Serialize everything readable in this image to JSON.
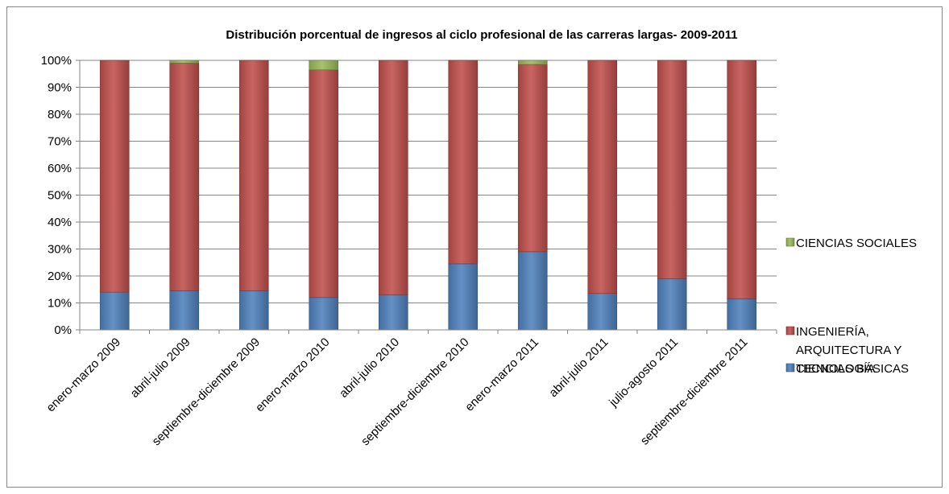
{
  "chart_data": {
    "type": "bar",
    "stacked": true,
    "percent_stacked": true,
    "title": "Distribución  porcentual de ingresos al ciclo profesional de las carreras largas- 2009-2011",
    "categories": [
      "enero-marzo 2009",
      "abril-julio 2009",
      "septiembre-diciembre 2009",
      "enero-marzo 2010",
      "abril-julio 2010",
      "septiembre-diciembre 2010",
      "enero-marzo 2011",
      "abril-julio 2011",
      "julio-agosto 2011",
      "septiembre-diciembre 2011"
    ],
    "series": [
      {
        "name": "CIENCIAS BÁSICAS",
        "color": "#4F81BD",
        "values": [
          14,
          14.5,
          14.5,
          12,
          13,
          24.5,
          29,
          13.5,
          19,
          11.5
        ]
      },
      {
        "name": "INGENIERÍA, ARQUITECTURA Y TECNOLOGÍA",
        "color": "#C0504D",
        "values": [
          86,
          84.5,
          85.5,
          84.5,
          87,
          75.5,
          69.5,
          86.5,
          81,
          88.5
        ]
      },
      {
        "name": "CIENCIAS SOCIALES",
        "color": "#9BBB59",
        "values": [
          0,
          1,
          0,
          3.5,
          0,
          0,
          1.5,
          0,
          0,
          0
        ]
      }
    ],
    "legend_order": [
      "CIENCIAS SOCIALES",
      "INGENIERÍA, ARQUITECTURA Y TECNOLOGÍA",
      "CIENCIAS BÁSICAS"
    ],
    "legend_lines": {
      "CIENCIAS SOCIALES": [
        "CIENCIAS SOCIALES"
      ],
      "INGENIERÍA, ARQUITECTURA Y TECNOLOGÍA": [
        "INGENIERÍA,",
        "ARQUITECTURA Y",
        "TECNOLOGÍA"
      ],
      "CIENCIAS BÁSICAS": [
        "CIENCIAS BÁSICAS"
      ]
    },
    "ytick_labels": [
      "0%",
      "10%",
      "20%",
      "30%",
      "40%",
      "50%",
      "60%",
      "70%",
      "80%",
      "90%",
      "100%"
    ],
    "ylim": [
      0,
      100
    ],
    "grid": true,
    "legend_position": "right"
  }
}
